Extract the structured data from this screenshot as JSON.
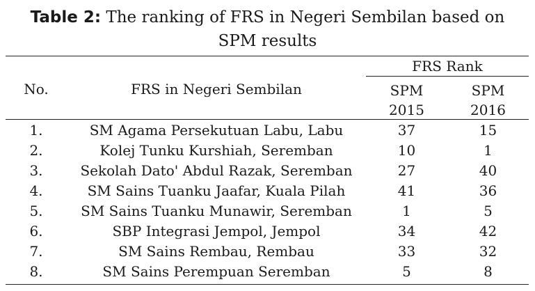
{
  "caption": {
    "label": "Table 2:",
    "text": " The ranking of FRS in Negeri Sembilan based on",
    "line2": "SPM results"
  },
  "header": {
    "no": "No.",
    "frs": "FRS in Negeri Sembilan",
    "rank_group": "FRS Rank",
    "year1_top": "SPM",
    "year1_bottom": "2015",
    "year2_top": "SPM",
    "year2_bottom": "2016"
  },
  "rows": [
    {
      "no": "1.",
      "name": "SM Agama Persekutuan Labu, Labu",
      "spm2015": "37",
      "spm2016": "15"
    },
    {
      "no": "2.",
      "name": "Kolej Tunku Kurshiah, Seremban",
      "spm2015": "10",
      "spm2016": "1"
    },
    {
      "no": "3.",
      "name": "Sekolah Dato' Abdul Razak, Seremban",
      "spm2015": "27",
      "spm2016": "40"
    },
    {
      "no": "4.",
      "name": "SM Sains Tuanku Jaafar, Kuala Pilah",
      "spm2015": "41",
      "spm2016": "36"
    },
    {
      "no": "5.",
      "name": "SM Sains Tuanku Munawir, Seremban",
      "spm2015": "1",
      "spm2016": "5"
    },
    {
      "no": "6.",
      "name": "SBP Integrasi Jempol, Jempol",
      "spm2015": "34",
      "spm2016": "42"
    },
    {
      "no": "7.",
      "name": "SM Sains Rembau, Rembau",
      "spm2015": "33",
      "spm2016": "32"
    },
    {
      "no": "8.",
      "name": "SM Sains Perempuan Seremban",
      "spm2015": "5",
      "spm2016": "8"
    }
  ]
}
